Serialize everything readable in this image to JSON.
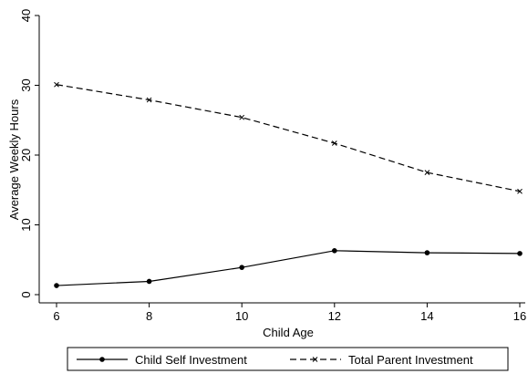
{
  "chart_data": {
    "type": "line",
    "title": "",
    "xlabel": "Child Age",
    "ylabel": "Average Weekly Hours",
    "x": [
      6,
      8,
      10,
      12,
      14,
      16
    ],
    "xlim": [
      6,
      16
    ],
    "ylim": [
      0,
      40
    ],
    "xticks": [
      6,
      8,
      10,
      12,
      14,
      16
    ],
    "yticks": [
      0,
      10,
      20,
      30,
      40
    ],
    "grid": false,
    "legend_position": "bottom",
    "series": [
      {
        "name": "Child Self Investment",
        "values": [
          1.3,
          1.9,
          3.9,
          6.3,
          6.0,
          5.9
        ],
        "line_style": "solid",
        "marker": "circle",
        "color": "#000000"
      },
      {
        "name": "Total Parent Investment",
        "values": [
          30.1,
          27.9,
          25.4,
          21.7,
          17.5,
          14.8
        ],
        "line_style": "dashed",
        "marker": "x",
        "color": "#000000"
      }
    ]
  }
}
